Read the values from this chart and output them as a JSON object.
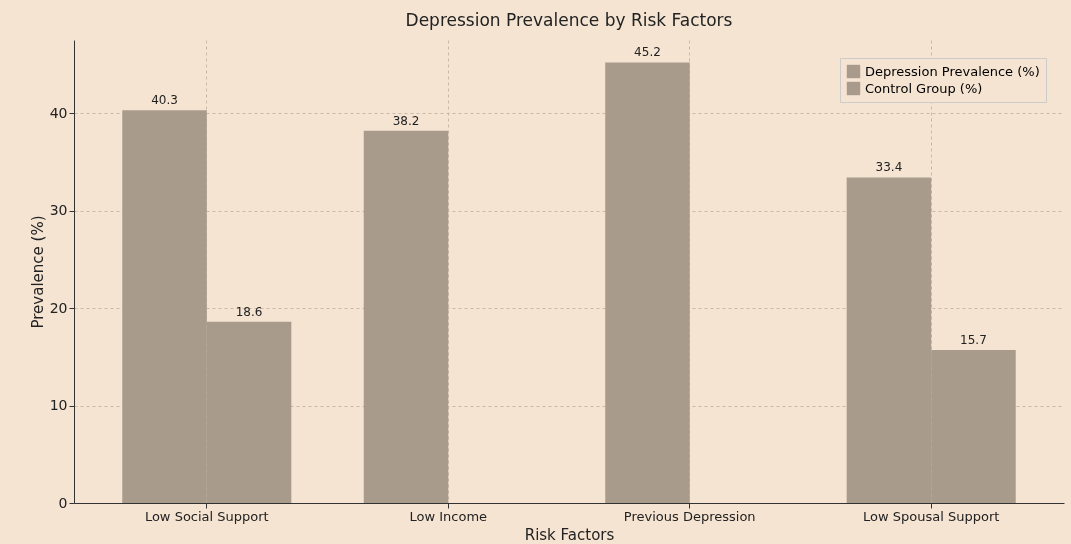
{
  "chart_data": {
    "type": "bar",
    "title": "Depression Prevalence by Risk Factors",
    "xlabel": "Risk Factors",
    "ylabel": "Prevalence (%)",
    "categories": [
      "Low Social Support",
      "Low Income",
      "Previous Depression",
      "Low Spousal Support"
    ],
    "series": [
      {
        "name": "Depression Prevalence (%)",
        "color": "#a89b8b",
        "values": [
          40.3,
          38.2,
          45.2,
          33.4
        ]
      },
      {
        "name": "Control Group (%)",
        "color": "#a89b8b",
        "values": [
          18.6,
          null,
          null,
          15.7
        ]
      }
    ],
    "ylim": [
      0,
      47.5
    ],
    "yticks": [
      0,
      10,
      20,
      30,
      40
    ],
    "grid": true,
    "legend": "top right",
    "data_labels": true
  }
}
